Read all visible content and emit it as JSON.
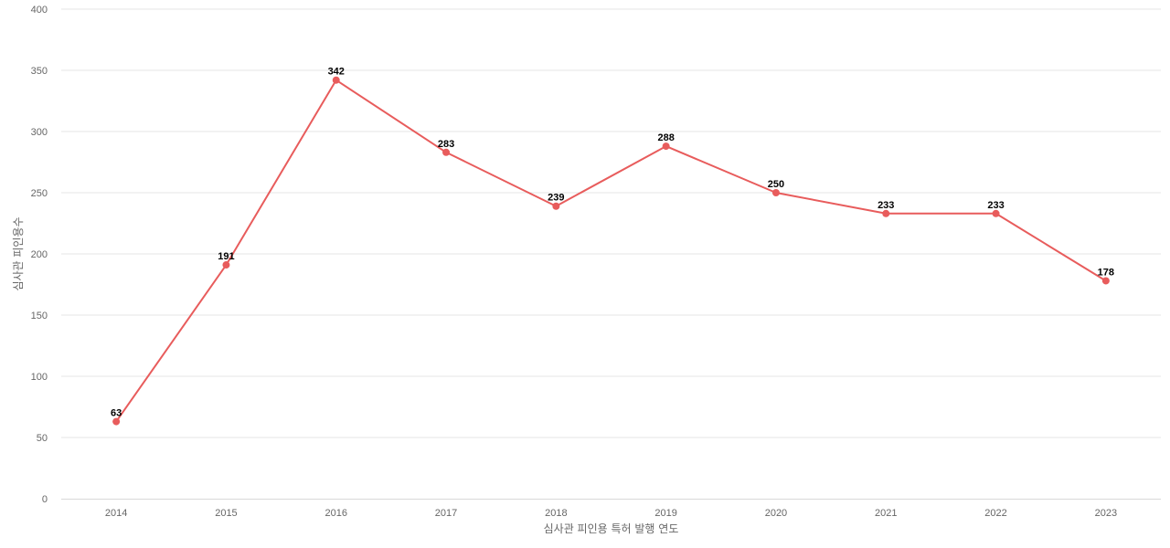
{
  "chart_data": {
    "type": "line",
    "title": "",
    "xlabel": "심사관 피인용 특허 발행 연도",
    "ylabel": "심사관 피인용수",
    "categories": [
      "2014",
      "2015",
      "2016",
      "2017",
      "2018",
      "2019",
      "2020",
      "2021",
      "2022",
      "2023"
    ],
    "series": [
      {
        "values": [
          63,
          191,
          342,
          283,
          239,
          288,
          250,
          233,
          233,
          178
        ],
        "color": "#e85c5c"
      }
    ],
    "ylim": [
      0,
      400
    ],
    "yticks": [
      0,
      50,
      100,
      150,
      200,
      250,
      300,
      350,
      400
    ],
    "grid": true,
    "legend": "none",
    "data_labels": true
  }
}
